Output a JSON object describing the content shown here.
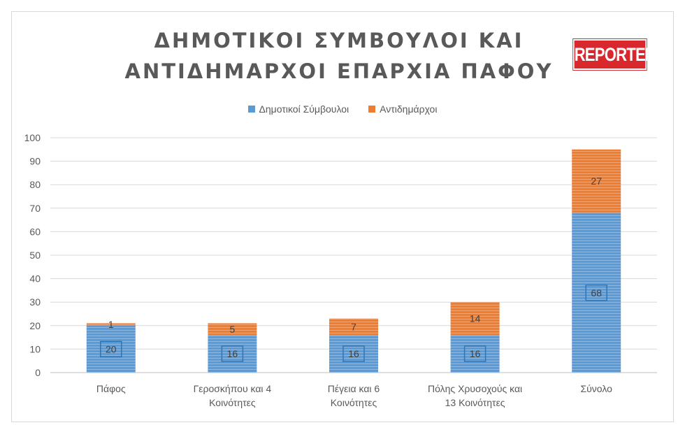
{
  "chart": {
    "title_line1": "ΔΗΜΟΤΙΚΟΙ ΣΥΜΒΟΥΛΟΙ ΚΑΙ",
    "title_line2": "ΑΝΤΙΔΗΜΑΡΧΟΙ ΕΠΑΡΧΙΑ ΠΑΦΟΥ",
    "logo_text": "REPORTER"
  },
  "colors": {
    "series1": "#5b9bd5",
    "series2": "#ed7d31",
    "grid": "#d9d9d9",
    "logo": "#d9272e"
  },
  "chart_data": {
    "type": "bar",
    "stacked": true,
    "title": "ΔΗΜΟΤΙΚΟΙ ΣΥΜΒΟΥΛΟΙ ΚΑΙ ΑΝΤΙΔΗΜΑΡΧΟΙ ΕΠΑΡΧΙΑ ΠΑΦΟΥ",
    "categories": [
      [
        "Πάφος"
      ],
      [
        "Γεροσκήπου και 4",
        "Κοινότητες"
      ],
      [
        "Πέγεια και 6",
        "Κοινότητες"
      ],
      [
        "Πόλης Χρυσοχούς και",
        "13 Κοινότητες"
      ],
      [
        "Σύνολο"
      ]
    ],
    "series": [
      {
        "name": "Δημοτικοί Σύμβουλοι",
        "values": [
          20,
          16,
          16,
          16,
          68
        ]
      },
      {
        "name": "Αντιδημάρχοι",
        "values": [
          1,
          5,
          7,
          14,
          27
        ]
      }
    ],
    "ylim": [
      0,
      100
    ],
    "yticks": [
      0,
      10,
      20,
      30,
      40,
      50,
      60,
      70,
      80,
      90,
      100
    ],
    "grid": true,
    "legend_position": "top"
  }
}
